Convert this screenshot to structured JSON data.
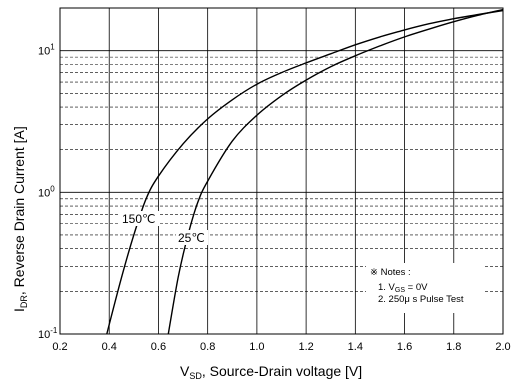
{
  "chart_data": {
    "type": "line",
    "x_scale": "linear",
    "y_scale": "log",
    "xlim": [
      0.2,
      2.0
    ],
    "ylim": [
      0.1,
      20
    ],
    "x_ticks": [
      0.2,
      0.4,
      0.6,
      0.8,
      1.0,
      1.2,
      1.4,
      1.6,
      1.8,
      2.0
    ],
    "x_tick_labels": [
      "0.2",
      "0.4",
      "0.6",
      "0.8",
      "1.0",
      "1.2",
      "1.4",
      "1.6",
      "1.8",
      "2.0"
    ],
    "y_major_ticks": [
      0.1,
      1,
      10
    ],
    "y_tick_labels": [
      {
        "base": "10",
        "exp": "-1"
      },
      {
        "base": "10",
        "exp": "0"
      },
      {
        "base": "10",
        "exp": "1"
      }
    ],
    "xlabel": {
      "main": "V",
      "sub": "SD",
      "rest": ", Source-Drain voltage [V]"
    },
    "ylabel": {
      "main": "I",
      "sub": "DR",
      "rest": ", Reverse Drain Current [A]"
    },
    "grid": {
      "major": true,
      "minor_y": true,
      "style": "dashed minor, solid major"
    },
    "series": [
      {
        "name": "150℃",
        "x": [
          0.39,
          0.45,
          0.5,
          0.55,
          0.6,
          0.7,
          0.8,
          0.9,
          1.0,
          1.1,
          1.2,
          1.3,
          1.4,
          1.5,
          1.6,
          1.7,
          1.8,
          1.9,
          2.0
        ],
        "y": [
          0.1,
          0.25,
          0.5,
          0.9,
          1.3,
          2.2,
          3.3,
          4.5,
          5.8,
          7.0,
          8.2,
          9.5,
          11.0,
          12.5,
          14.0,
          15.5,
          16.8,
          18.0,
          19.2
        ]
      },
      {
        "name": "25℃",
        "x": [
          0.64,
          0.68,
          0.72,
          0.76,
          0.8,
          0.9,
          1.0,
          1.1,
          1.2,
          1.3,
          1.4,
          1.5,
          1.6,
          1.7,
          1.8,
          1.9,
          2.0
        ],
        "y": [
          0.1,
          0.25,
          0.5,
          0.85,
          1.2,
          2.3,
          3.5,
          4.8,
          6.2,
          7.7,
          9.2,
          10.8,
          12.5,
          14.2,
          16.0,
          17.8,
          19.5
        ]
      }
    ],
    "annotations": {
      "label_150": "150℃",
      "label_25": "25℃"
    },
    "notes": {
      "title": "※ Notes :",
      "line1": {
        "pre": "1. V",
        "sub": "GS",
        "post": " = 0V"
      },
      "line2": "2. 250μ s Pulse Test"
    }
  }
}
